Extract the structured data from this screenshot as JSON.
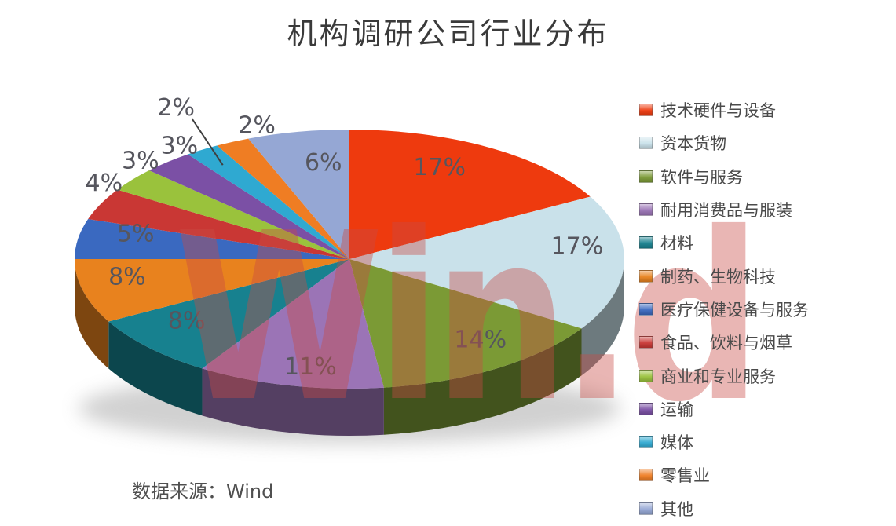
{
  "page": {
    "title": "机构调研公司行业分布",
    "source_note": "数据来源：Wind",
    "watermark_text": "Win.d"
  },
  "chart_data": {
    "type": "pie",
    "style": "3d",
    "title": "机构调研公司行业分布",
    "legend_position": "right",
    "start_angle_deg": 0,
    "direction": "clockwise",
    "categories": [
      "技术硬件与设备",
      "资本货物",
      "软件与服务",
      "耐用消费品与服装",
      "材料",
      "制药、生物科技",
      "医疗保健设备与服务",
      "食品、饮料与烟草",
      "商业和专业服务",
      "运输",
      "媒体",
      "零售业",
      "其他"
    ],
    "values": [
      17,
      17,
      14,
      11,
      8,
      8,
      5,
      4,
      3,
      3,
      2,
      2,
      6
    ],
    "percent_labels": [
      "17%",
      "17%",
      "14%",
      "11%",
      "8%",
      "8%",
      "5%",
      "4%",
      "3%",
      "3%",
      "2%",
      "2%",
      "6%"
    ],
    "colors": [
      "#ee3a0e",
      "#c9e1ea",
      "#7b9a35",
      "#9b74b6",
      "#17818f",
      "#e8821e",
      "#3a69c0",
      "#c93734",
      "#9ac23c",
      "#7b50a5",
      "#2fa9d1",
      "#ef7d23",
      "#95a7d4"
    ],
    "label_color": "#56565e",
    "source_note": "数据来源：Wind",
    "watermark": "Win.d"
  }
}
